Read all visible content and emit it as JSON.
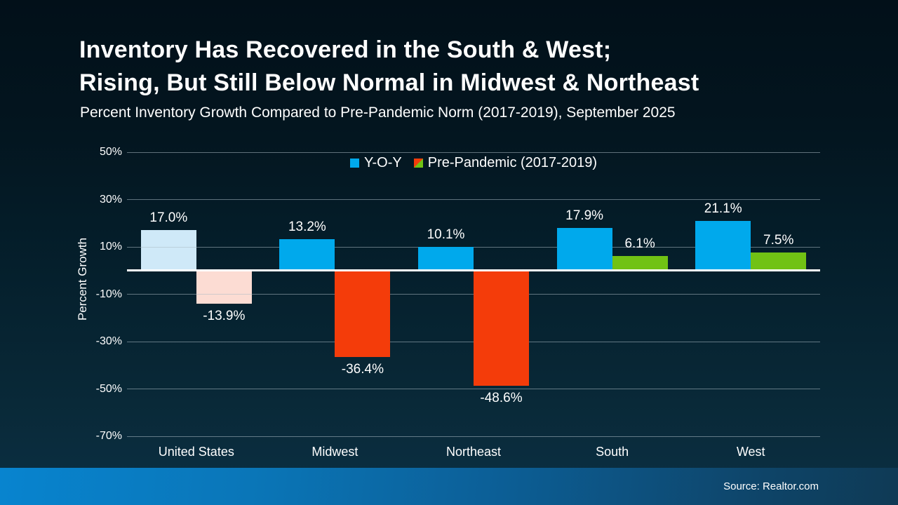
{
  "page": {
    "title_line1": "Inventory Has Recovered in the South & West;",
    "title_line2": "Rising, But Still Below Normal in Midwest & Northeast",
    "subtitle": "Percent Inventory Growth Compared to Pre-Pandemic Norm (2017-2019), September 2025",
    "source": "Source: Realtor.com"
  },
  "colors": {
    "background_top": "#021019",
    "background_bottom": "#0b3044",
    "yoy_blue": "#00a9ec",
    "yoy_blue_muted": "#cfe9f8",
    "negative_red": "#f43c0a",
    "negative_red_muted": "#fcdcd3",
    "positive_green": "#71c214",
    "gridline": "rgba(172,188,196,0.55)",
    "zero_line": "#ffffff",
    "footer_left": "#0884cf",
    "footer_right": "#0f3a55"
  },
  "chart_data": {
    "type": "bar",
    "title": "Inventory Has Recovered in the South & West; Rising, But Still Below Normal in Midwest & Northeast",
    "subtitle": "Percent Inventory Growth Compared to Pre-Pandemic Norm (2017-2019), September 2025",
    "xlabel": "",
    "ylabel": "Percent Growth",
    "ylim": [
      -70,
      50
    ],
    "yticks": [
      50,
      30,
      10,
      -10,
      -30,
      -50,
      -70
    ],
    "ytick_labels": [
      "50%",
      "30%",
      "10%",
      "-10%",
      "-30%",
      "-50%",
      "-70%"
    ],
    "grid": "horizontal",
    "legend_position": "top-center",
    "categories": [
      "United States",
      "Midwest",
      "Northeast",
      "South",
      "West"
    ],
    "muted": [
      true,
      false,
      false,
      false,
      false
    ],
    "series": [
      {
        "name": "Y-O-Y",
        "values": [
          17.0,
          13.2,
          10.1,
          17.9,
          21.1
        ],
        "labels": [
          "17.0%",
          "13.2%",
          "10.1%",
          "17.9%",
          "21.1%"
        ],
        "colors": [
          "#cfe9f8",
          "#00a9ec",
          "#00a9ec",
          "#00a9ec",
          "#00a9ec"
        ]
      },
      {
        "name": "Pre-Pandemic (2017-2019)",
        "values": [
          -13.9,
          -36.4,
          -48.6,
          6.1,
          7.5
        ],
        "labels": [
          "-13.9%",
          "-36.4%",
          "-48.6%",
          "6.1%",
          "7.5%"
        ],
        "colors": [
          "#fcdcd3",
          "#f43c0a",
          "#f43c0a",
          "#71c214",
          "#71c214"
        ]
      }
    ],
    "legend": [
      {
        "label": "Y-O-Y",
        "swatch": [
          "#00a9ec"
        ]
      },
      {
        "label": "Pre-Pandemic (2017-2019)",
        "swatch": [
          "#f43c0a",
          "#71c214"
        ]
      }
    ]
  }
}
